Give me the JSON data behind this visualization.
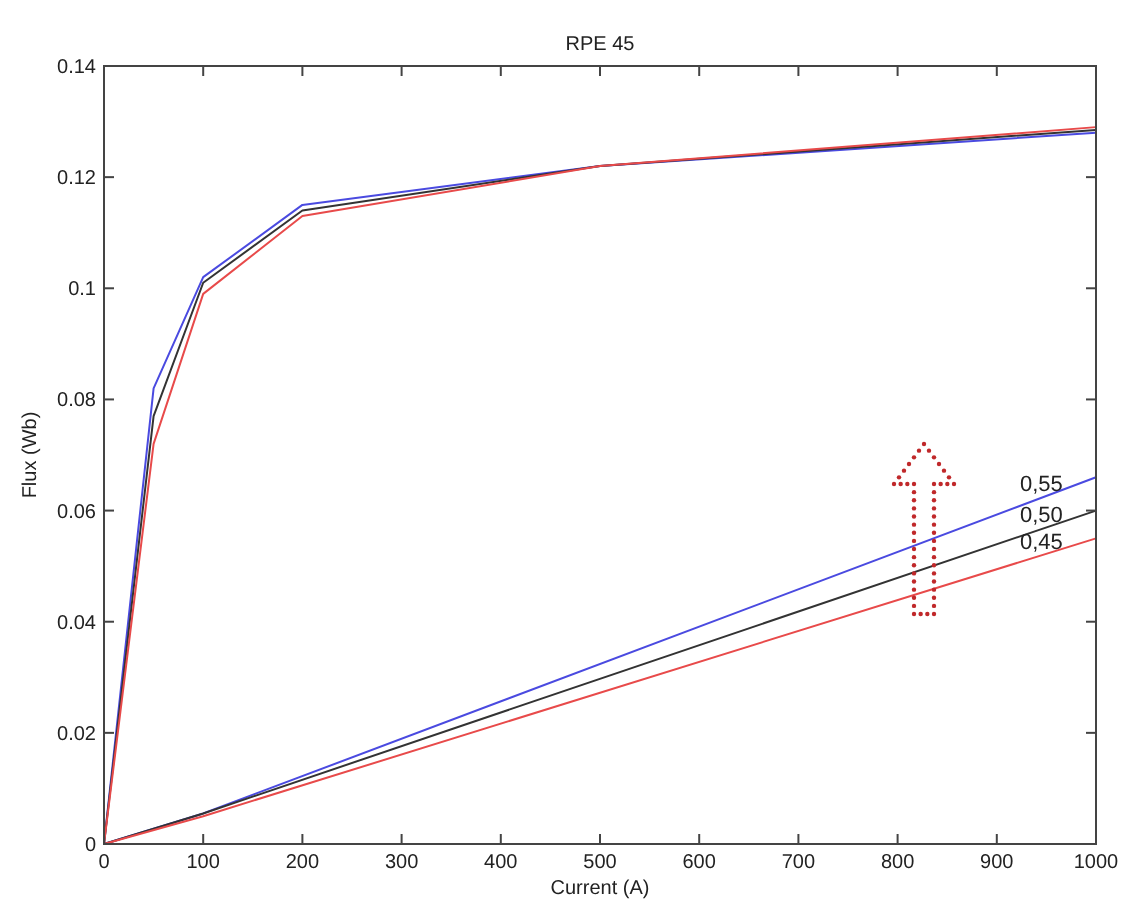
{
  "chart_data": {
    "type": "line",
    "title": "RPE 45",
    "xlabel": "Current (A)",
    "ylabel": "Flux (Wb)",
    "xlim": [
      0,
      1000
    ],
    "ylim": [
      0,
      0.14
    ],
    "xticks": [
      0,
      100,
      200,
      300,
      400,
      500,
      600,
      700,
      800,
      900,
      1000
    ],
    "yticks": [
      0,
      0.02,
      0.04,
      0.06,
      0.08,
      0.1,
      0.12,
      0.14
    ],
    "grid": false,
    "marker": "none",
    "line_style": "solid",
    "series": [
      {
        "color": "#4a4ae0",
        "x": [
          0,
          50,
          100,
          200,
          500,
          1000
        ],
        "values": [
          0,
          0.082,
          0.102,
          0.115,
          0.122,
          0.128
        ]
      },
      {
        "color": "#333333",
        "x": [
          0,
          50,
          100,
          200,
          500,
          1000
        ],
        "values": [
          0,
          0.077,
          0.101,
          0.114,
          0.122,
          0.1285
        ]
      },
      {
        "color": "#e84a4a",
        "x": [
          0,
          50,
          100,
          200,
          500,
          1000
        ],
        "values": [
          0,
          0.072,
          0.099,
          0.113,
          0.122,
          0.129
        ]
      },
      {
        "name": "0,55",
        "color": "#4a4ae0",
        "x": [
          0,
          100,
          1000
        ],
        "values": [
          0,
          0.0055,
          0.066
        ]
      },
      {
        "name": "0,50",
        "color": "#333333",
        "x": [
          0,
          100,
          1000
        ],
        "values": [
          0,
          0.0055,
          0.06
        ]
      },
      {
        "name": "0,45",
        "color": "#e84a4a",
        "x": [
          0,
          100,
          1000
        ],
        "values": [
          0,
          0.005,
          0.055
        ]
      }
    ]
  }
}
